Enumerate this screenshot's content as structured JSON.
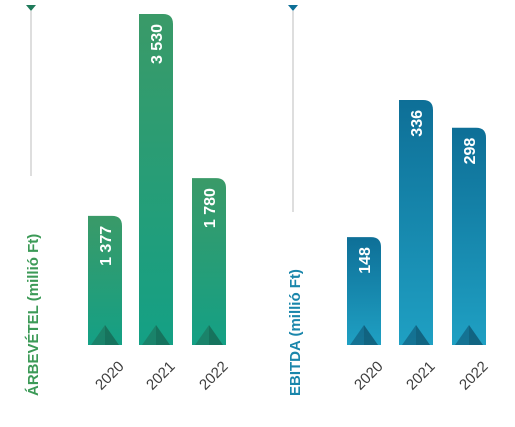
{
  "chart_data": [
    {
      "type": "bar",
      "ylabel": "ÁRBEVÉTEL (millió Ft)",
      "categories": [
        "2020",
        "2021",
        "2022"
      ],
      "values": [
        1377,
        3530,
        1780
      ],
      "value_labels": [
        "1 377",
        "3 530",
        "1 780"
      ],
      "ylim": [
        0,
        3530
      ],
      "colors": {
        "top": "#3a9a68",
        "bottom": "#14a085",
        "label": "#3c9a57",
        "accent": "#1f6b55"
      }
    },
    {
      "type": "bar",
      "ylabel": "EBITDA (millió Ft)",
      "categories": [
        "2020",
        "2021",
        "2022"
      ],
      "values": [
        148,
        336,
        298
      ],
      "value_labels": [
        "148",
        "336",
        "298"
      ],
      "ylim": [
        0,
        336
      ],
      "colors": {
        "top": "#0e6f97",
        "bottom": "#1fa0c3",
        "label": "#1a86ab",
        "accent": "#0d4f6e"
      }
    }
  ]
}
